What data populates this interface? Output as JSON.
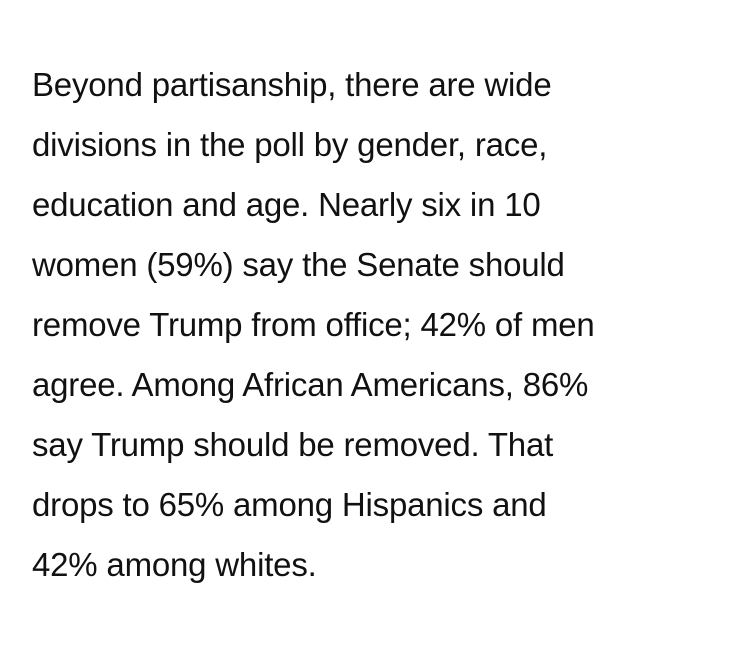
{
  "paragraph": {
    "lines": [
      "Beyond partisanship, there are wide",
      "divisions in the poll by gender, race,",
      "education and age. Nearly six in 10",
      "women (59%) say the Senate should",
      "remove Trump from office; 42% of men",
      "agree. Among African Americans, 86%",
      "say Trump should be removed. That",
      "drops to 65% among Hispanics and",
      "42% among whites."
    ]
  }
}
